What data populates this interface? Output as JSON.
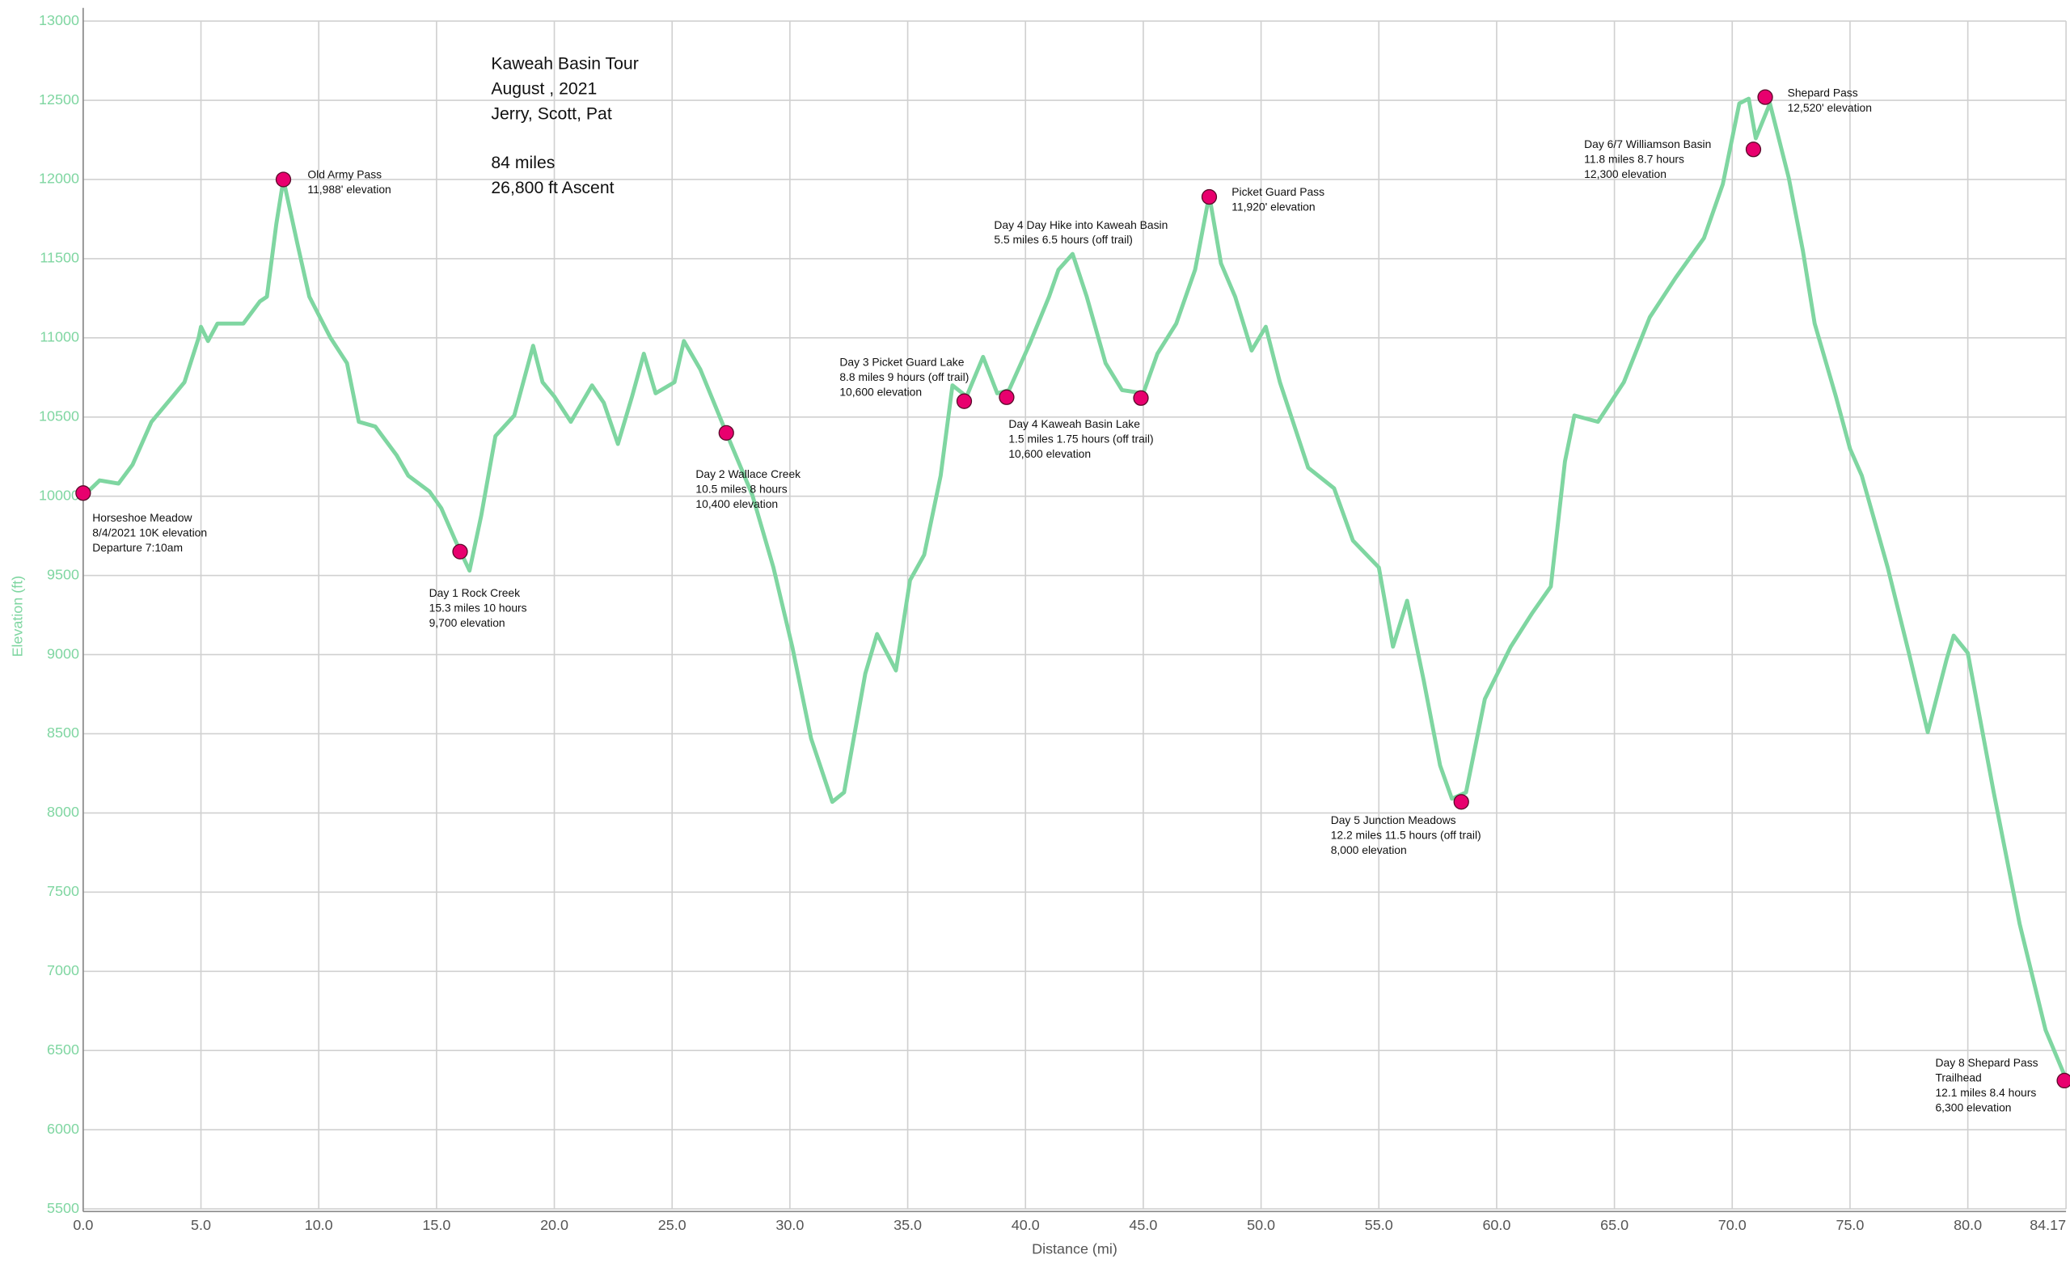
{
  "chart_data": {
    "type": "line",
    "title_lines": [
      [
        "Kaweah Basin Tour",
        "August , 2021",
        "Jerry, Scott, Pat"
      ],
      [
        "84 miles",
        "26,800 ft Ascent"
      ]
    ],
    "xlabel": "Distance (mi)",
    "ylabel": "Elevation (ft)",
    "xlim": [
      0,
      84.17
    ],
    "ylim": [
      5500,
      13000
    ],
    "xticks": [
      {
        "value": 0,
        "label": "0.0"
      },
      {
        "value": 5,
        "label": "5.0"
      },
      {
        "value": 10,
        "label": "10.0"
      },
      {
        "value": 15,
        "label": "15.0"
      },
      {
        "value": 20,
        "label": "20.0"
      },
      {
        "value": 25,
        "label": "25.0"
      },
      {
        "value": 30,
        "label": "30.0"
      },
      {
        "value": 35,
        "label": "35.0"
      },
      {
        "value": 40,
        "label": "40.0"
      },
      {
        "value": 45,
        "label": "45.0"
      },
      {
        "value": 50,
        "label": "50.0"
      },
      {
        "value": 55,
        "label": "55.0"
      },
      {
        "value": 60,
        "label": "60.0"
      },
      {
        "value": 65,
        "label": "65.0"
      },
      {
        "value": 70,
        "label": "70.0"
      },
      {
        "value": 75,
        "label": "75.0"
      },
      {
        "value": 80,
        "label": "80.0"
      },
      84.17
    ],
    "yticks": [
      5500,
      6000,
      6500,
      7000,
      7500,
      8000,
      8500,
      9000,
      9500,
      10000,
      10500,
      11000,
      11500,
      12000,
      12500,
      13000
    ],
    "grid": true,
    "series": [
      {
        "color": "#7fd6a1",
        "x": [
          0,
          0.7,
          1.5,
          2.1,
          2.9,
          3.8,
          4.3,
          4.9,
          5.0,
          5.3,
          5.7,
          6.8,
          7.5,
          7.8,
          8.2,
          8.5,
          9.1,
          9.6,
          10.5,
          11.2,
          11.7,
          12.4,
          13.3,
          13.8,
          14.7,
          15.2,
          15.8,
          16.4,
          16.9,
          17.5,
          18.3,
          19.1,
          19.5,
          20.0,
          20.7,
          21.6,
          22.1,
          22.7,
          23.3,
          23.8,
          24.3,
          25.1,
          25.5,
          26.2,
          27.3,
          28.4,
          29.3,
          30.1,
          30.9,
          31.8,
          32.3,
          33.2,
          33.7,
          34.5,
          35.1,
          35.7,
          36.4,
          36.9,
          37.5,
          38.2,
          38.8,
          39.3,
          40.2,
          41.0,
          41.4,
          42.0,
          42.6,
          43.4,
          44.1,
          45.0,
          45.6,
          46.4,
          47.2,
          47.8,
          48.3,
          48.9,
          49.6,
          50.2,
          50.8,
          52.0,
          53.1,
          53.9,
          55.0,
          55.6,
          56.2,
          56.9,
          57.6,
          58.1,
          58.7,
          59.5,
          60.6,
          61.5,
          62.3,
          62.9,
          63.3,
          64.3,
          65.4,
          66.5,
          67.6,
          68.8,
          69.6,
          70.3,
          70.7,
          71.0,
          71.6,
          72.4,
          73.0,
          73.5,
          74.4,
          75.0,
          75.5,
          76.6,
          77.5,
          78.3,
          79.1,
          79.4,
          80.0,
          81.1,
          82.2,
          83.3,
          84.17
        ],
        "values": [
          10000,
          10100,
          10080,
          10200,
          10470,
          10630,
          10720,
          11000,
          11070,
          10980,
          11090,
          11090,
          11230,
          11260,
          11720,
          12000,
          11590,
          11260,
          11000,
          10840,
          10470,
          10440,
          10260,
          10130,
          10030,
          9925,
          9720,
          9530,
          9880,
          10380,
          10510,
          10950,
          10720,
          10630,
          10470,
          10700,
          10590,
          10330,
          10630,
          10900,
          10650,
          10720,
          10980,
          10800,
          10400,
          10010,
          9550,
          9050,
          8470,
          8070,
          8130,
          8880,
          9130,
          8900,
          9470,
          9630,
          10130,
          10700,
          10630,
          10880,
          10650,
          10670,
          10970,
          11260,
          11430,
          11530,
          11260,
          10840,
          10670,
          10650,
          10900,
          11090,
          11430,
          11900,
          11470,
          11260,
          10920,
          11070,
          10720,
          10180,
          10050,
          9720,
          9550,
          9050,
          9340,
          8840,
          8300,
          8090,
          8130,
          8720,
          9050,
          9260,
          9430,
          10220,
          10510,
          10470,
          10720,
          11130,
          11380,
          11630,
          11970,
          12480,
          12510,
          12260,
          12480,
          12010,
          11550,
          11090,
          10630,
          10300,
          10130,
          9550,
          9010,
          8510,
          8970,
          9120,
          9010,
          8130,
          7300,
          6630,
          6320
        ]
      }
    ],
    "waypoint_color": "#e8006e",
    "waypoints": [
      {
        "x": 0,
        "y": 10020,
        "lines": [
          "Horseshoe Meadow",
          "8/4/2021 10K elevation",
          "Departure 7:10am"
        ]
      },
      {
        "x": 8.5,
        "y": 12000,
        "lines": [
          "Old Army Pass",
          "11,988' elevation"
        ]
      },
      {
        "x": 16.0,
        "y": 9650,
        "lines": [
          "Day 1 Rock Creek",
          "15.3 miles 10 hours",
          "9,700 elevation"
        ]
      },
      {
        "x": 27.3,
        "y": 10400,
        "lines": [
          "Day 2 Wallace Creek",
          "10.5 miles 8 hours",
          "10,400 elevation"
        ]
      },
      {
        "x": 37.4,
        "y": 10600,
        "lines": [
          "Day 3 Picket Guard Lake",
          "8.8 miles 9 hours (off trail)",
          "10,600 elevation"
        ]
      },
      {
        "x": 39.2,
        "y": 10625,
        "lines": [
          "Day 4 Kaweah Basin Lake",
          "1.5 miles 1.75 hours (off trail)",
          "10,600 elevation"
        ]
      },
      {
        "x": 44.9,
        "y": 10620,
        "lines": [
          "Day 4 Day Hike into Kaweah Basin",
          "5.5 miles 6.5 hours (off trail)"
        ]
      },
      {
        "x": 47.8,
        "y": 11890,
        "lines": [
          "Picket Guard Pass",
          "11,920' elevation"
        ]
      },
      {
        "x": 58.5,
        "y": 8070,
        "lines": [
          "Day 5 Junction Meadows",
          "12.2 miles 11.5 hours (off trail)",
          "8,000 elevation"
        ]
      },
      {
        "x": 70.9,
        "y": 12190,
        "lines": [
          "Day 6/7 Williamson Basin",
          "11.8 miles 8.7 hours",
          "12,300 elevation"
        ]
      },
      {
        "x": 71.4,
        "y": 12520,
        "lines": [
          "Shepard Pass",
          "12,520' elevation"
        ]
      },
      {
        "x": 84.1,
        "y": 6310,
        "lines": [
          "Day 8 Shepard Pass",
          "Trailhead",
          "12.1 miles 8.4 hours",
          "6,300 elevation"
        ]
      }
    ]
  }
}
